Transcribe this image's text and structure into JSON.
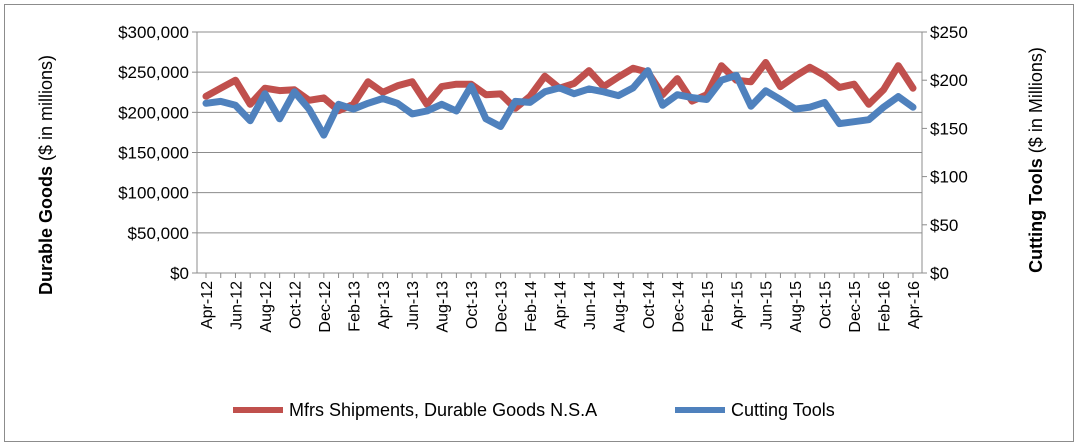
{
  "chart_data": {
    "type": "line",
    "title": "",
    "x": [
      "Apr-12",
      "May-12",
      "Jun-12",
      "Jul-12",
      "Aug-12",
      "Sep-12",
      "Oct-12",
      "Nov-12",
      "Dec-12",
      "Jan-13",
      "Feb-13",
      "Mar-13",
      "Apr-13",
      "May-13",
      "Jun-13",
      "Jul-13",
      "Aug-13",
      "Sep-13",
      "Oct-13",
      "Nov-13",
      "Dec-13",
      "Jan-14",
      "Feb-14",
      "Mar-14",
      "Apr-14",
      "May-14",
      "Jun-14",
      "Jul-14",
      "Aug-14",
      "Sep-14",
      "Oct-14",
      "Nov-14",
      "Dec-14",
      "Jan-15",
      "Feb-15",
      "Mar-15",
      "Apr-15",
      "May-15",
      "Jun-15",
      "Jul-15",
      "Aug-15",
      "Sep-15",
      "Oct-15",
      "Nov-15",
      "Dec-15",
      "Jan-16",
      "Feb-16",
      "Mar-16",
      "Apr-16"
    ],
    "xtick_labels": [
      "Apr-12",
      "Jun-12",
      "Aug-12",
      "Oct-12",
      "Dec-12",
      "Feb-13",
      "Apr-13",
      "Jun-13",
      "Aug-13",
      "Oct-13",
      "Dec-13",
      "Feb-14",
      "Apr-14",
      "Jun-14",
      "Aug-14",
      "Oct-14",
      "Dec-14",
      "Feb-15",
      "Apr-15",
      "Jun-15",
      "Aug-15",
      "Oct-15",
      "Dec-15",
      "Feb-16",
      "Apr-16"
    ],
    "y_left": {
      "label_bold": "Durable Goods",
      "label_normal": "($ in millions)",
      "ylim": [
        0,
        300000
      ],
      "ticks": [
        0,
        50000,
        100000,
        150000,
        200000,
        250000,
        300000
      ],
      "tick_labels": [
        "$0",
        "$50,000",
        "$100,000",
        "$150,000",
        "$200,000",
        "$250,000",
        "$300,000"
      ]
    },
    "y_right": {
      "label_bold": "Cutting Tools",
      "label_normal": "($ in Millions)",
      "ylim": [
        0,
        250
      ],
      "ticks": [
        0,
        50,
        100,
        150,
        200,
        250
      ],
      "tick_labels": [
        "$0",
        "$50",
        "$100",
        "$150",
        "$200",
        "$250"
      ]
    },
    "series": [
      {
        "name": "Mfrs Shipments, Durable Goods N.S.A",
        "axis": "left",
        "color": "#c0504d",
        "values": [
          220000,
          230000,
          240000,
          210000,
          230000,
          227000,
          228000,
          215000,
          218000,
          202000,
          210000,
          238000,
          225000,
          233000,
          238000,
          210000,
          232000,
          235000,
          235000,
          222000,
          223000,
          205000,
          220000,
          245000,
          230000,
          236000,
          252000,
          232000,
          244000,
          255000,
          250000,
          222000,
          242000,
          214000,
          222000,
          258000,
          240000,
          238000,
          262000,
          232000,
          245000,
          256000,
          246000,
          231000,
          235000,
          210000,
          228000,
          258000,
          230000
        ]
      },
      {
        "name": "Cutting Tools",
        "axis": "right",
        "color": "#4f81bd",
        "values": [
          176,
          178,
          174,
          158,
          186,
          160,
          188,
          170,
          143,
          175,
          170,
          176,
          181,
          176,
          165,
          168,
          175,
          168,
          194,
          160,
          152,
          178,
          177,
          188,
          192,
          186,
          191,
          188,
          184,
          192,
          210,
          174,
          185,
          182,
          180,
          200,
          205,
          173,
          189,
          180,
          170,
          172,
          177,
          155,
          157,
          159,
          172,
          183,
          172
        ]
      }
    ],
    "legend": {
      "position": "bottom"
    },
    "grid": true
  }
}
